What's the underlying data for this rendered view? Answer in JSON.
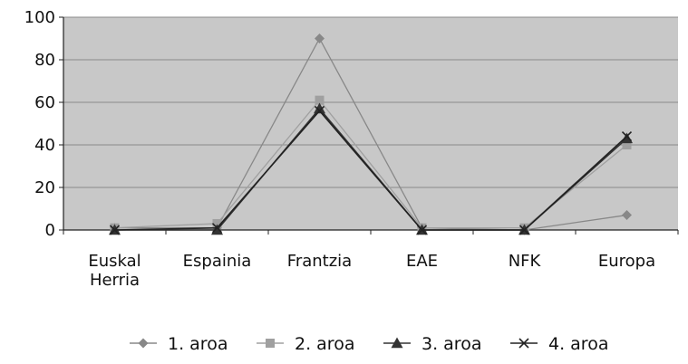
{
  "chart_data": {
    "type": "line",
    "categories": [
      [
        "Euskal",
        "Herria"
      ],
      [
        "Espainia"
      ],
      [
        "Frantzia"
      ],
      [
        "EAE"
      ],
      [
        "NFK"
      ],
      [
        "Europa"
      ]
    ],
    "ylim": [
      0,
      100
    ],
    "yticks": [
      0,
      20,
      40,
      60,
      80,
      100
    ],
    "grid": true,
    "plot_background": "#c8c8c8",
    "legend_position": "bottom",
    "series": [
      {
        "name": "1. aroa",
        "marker": "diamond",
        "color": "#888888",
        "values": [
          1,
          1,
          90,
          1,
          0,
          7
        ]
      },
      {
        "name": "2. aroa",
        "marker": "square",
        "color": "#a0a0a0",
        "values": [
          1,
          3,
          61,
          1,
          1,
          40
        ]
      },
      {
        "name": "3. aroa",
        "marker": "triangle",
        "color": "#333333",
        "values": [
          0,
          0,
          57,
          0,
          0,
          43
        ]
      },
      {
        "name": "4. aroa",
        "marker": "x",
        "color": "#222222",
        "values": [
          0,
          1,
          56,
          0,
          0,
          44
        ]
      }
    ]
  }
}
